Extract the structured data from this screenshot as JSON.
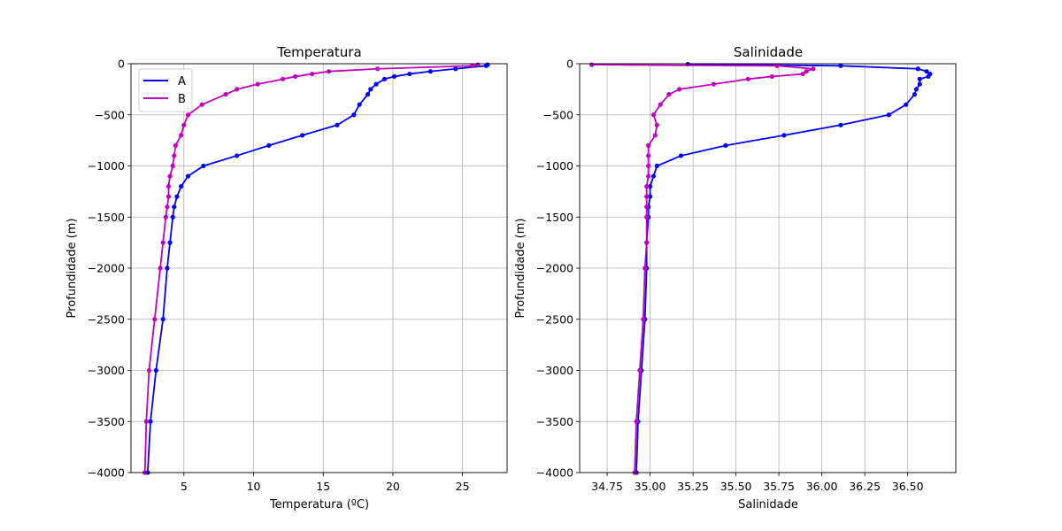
{
  "chart_data": [
    {
      "type": "line",
      "title": "Temperatura",
      "xlabel": "Temperatura (ºC)",
      "ylabel": "Profundidade (m)",
      "xlim": [
        1.2,
        28.2
      ],
      "ylim": [
        -4000,
        0
      ],
      "xticks": [
        5,
        10,
        15,
        20,
        25
      ],
      "xtick_labels": [
        "5",
        "10",
        "15",
        "20",
        "25"
      ],
      "yticks": [
        0,
        -500,
        -1000,
        -1500,
        -2000,
        -2500,
        -3000,
        -3500,
        -4000
      ],
      "ytick_labels": [
        "0",
        "−500",
        "−1000",
        "−1500",
        "−2000",
        "−2500",
        "−3000",
        "−3500",
        "−4000"
      ],
      "grid": true,
      "legend": "top-left",
      "series": [
        {
          "name": "A",
          "color": "#0000ff",
          "points": [
            [
              26.8,
              -10
            ],
            [
              26.7,
              -20
            ],
            [
              24.5,
              -50
            ],
            [
              22.7,
              -75
            ],
            [
              21.2,
              -100
            ],
            [
              20.1,
              -125
            ],
            [
              19.4,
              -150
            ],
            [
              18.8,
              -200
            ],
            [
              18.4,
              -250
            ],
            [
              18.2,
              -300
            ],
            [
              17.6,
              -400
            ],
            [
              17.2,
              -500
            ],
            [
              16.0,
              -600
            ],
            [
              13.5,
              -700
            ],
            [
              11.1,
              -800
            ],
            [
              8.8,
              -900
            ],
            [
              6.4,
              -1000
            ],
            [
              5.3,
              -1100
            ],
            [
              4.8,
              -1200
            ],
            [
              4.5,
              -1300
            ],
            [
              4.3,
              -1400
            ],
            [
              4.2,
              -1500
            ],
            [
              4.0,
              -1750
            ],
            [
              3.8,
              -2000
            ],
            [
              3.5,
              -2500
            ],
            [
              3.0,
              -3000
            ],
            [
              2.6,
              -3500
            ],
            [
              2.4,
              -4000
            ]
          ]
        },
        {
          "name": "B",
          "color": "#bf00bf",
          "points": [
            [
              26.1,
              -10
            ],
            [
              25.7,
              -20
            ],
            [
              18.9,
              -50
            ],
            [
              15.4,
              -75
            ],
            [
              14.2,
              -100
            ],
            [
              13.0,
              -125
            ],
            [
              12.1,
              -150
            ],
            [
              10.3,
              -200
            ],
            [
              8.8,
              -250
            ],
            [
              8.0,
              -300
            ],
            [
              6.3,
              -400
            ],
            [
              5.3,
              -500
            ],
            [
              5.0,
              -600
            ],
            [
              4.8,
              -700
            ],
            [
              4.4,
              -800
            ],
            [
              4.3,
              -900
            ],
            [
              4.2,
              -1000
            ],
            [
              4.0,
              -1100
            ],
            [
              3.9,
              -1200
            ],
            [
              3.9,
              -1300
            ],
            [
              3.8,
              -1400
            ],
            [
              3.7,
              -1500
            ],
            [
              3.5,
              -1750
            ],
            [
              3.3,
              -2000
            ],
            [
              2.9,
              -2500
            ],
            [
              2.5,
              -3000
            ],
            [
              2.3,
              -3500
            ],
            [
              2.2,
              -4000
            ]
          ]
        }
      ]
    },
    {
      "type": "line",
      "title": "Salinidade",
      "xlabel": "Salinidade",
      "ylabel": "Profundidade (m)",
      "xlim": [
        34.59,
        36.78
      ],
      "ylim": [
        -4000,
        0
      ],
      "xticks": [
        34.75,
        35.0,
        35.25,
        35.5,
        35.75,
        36.0,
        36.25,
        36.5
      ],
      "xtick_labels": [
        "34.75",
        "35.00",
        "35.25",
        "35.50",
        "35.75",
        "36.00",
        "36.25",
        "36.50"
      ],
      "yticks": [
        0,
        -500,
        -1000,
        -1500,
        -2000,
        -2500,
        -3000,
        -3500,
        -4000
      ],
      "ytick_labels": [
        "0",
        "−500",
        "−1000",
        "−1500",
        "−2000",
        "−2500",
        "−3000",
        "−3500",
        "−4000"
      ],
      "grid": true,
      "series": [
        {
          "name": "A",
          "color": "#0000ff",
          "points": [
            [
              35.22,
              -5
            ],
            [
              36.11,
              -20
            ],
            [
              36.56,
              -50
            ],
            [
              36.61,
              -75
            ],
            [
              36.63,
              -100
            ],
            [
              36.62,
              -125
            ],
            [
              36.57,
              -150
            ],
            [
              36.57,
              -200
            ],
            [
              36.55,
              -250
            ],
            [
              36.54,
              -300
            ],
            [
              36.49,
              -400
            ],
            [
              36.39,
              -500
            ],
            [
              36.11,
              -600
            ],
            [
              35.78,
              -700
            ],
            [
              35.44,
              -800
            ],
            [
              35.18,
              -900
            ],
            [
              35.04,
              -1000
            ],
            [
              35.02,
              -1100
            ],
            [
              35.0,
              -1200
            ],
            [
              35.0,
              -1300
            ],
            [
              34.99,
              -1400
            ],
            [
              34.99,
              -1500
            ],
            [
              34.98,
              -1750
            ],
            [
              34.98,
              -2000
            ],
            [
              34.97,
              -2500
            ],
            [
              34.95,
              -3000
            ],
            [
              34.93,
              -3500
            ],
            [
              34.92,
              -4000
            ]
          ]
        },
        {
          "name": "B",
          "color": "#bf00bf",
          "points": [
            [
              34.66,
              -10
            ],
            [
              35.74,
              -20
            ],
            [
              35.95,
              -50
            ],
            [
              35.91,
              -75
            ],
            [
              35.89,
              -100
            ],
            [
              35.71,
              -125
            ],
            [
              35.57,
              -150
            ],
            [
              35.37,
              -200
            ],
            [
              35.17,
              -250
            ],
            [
              35.11,
              -300
            ],
            [
              35.06,
              -400
            ],
            [
              35.02,
              -500
            ],
            [
              35.04,
              -600
            ],
            [
              35.03,
              -700
            ],
            [
              34.99,
              -800
            ],
            [
              34.99,
              -900
            ],
            [
              34.99,
              -1000
            ],
            [
              34.99,
              -1100
            ],
            [
              34.98,
              -1200
            ],
            [
              34.98,
              -1300
            ],
            [
              34.98,
              -1400
            ],
            [
              34.98,
              -1500
            ],
            [
              34.98,
              -1750
            ],
            [
              34.97,
              -2000
            ],
            [
              34.96,
              -2500
            ],
            [
              34.94,
              -3000
            ],
            [
              34.92,
              -3500
            ],
            [
              34.91,
              -4000
            ]
          ]
        }
      ]
    }
  ]
}
